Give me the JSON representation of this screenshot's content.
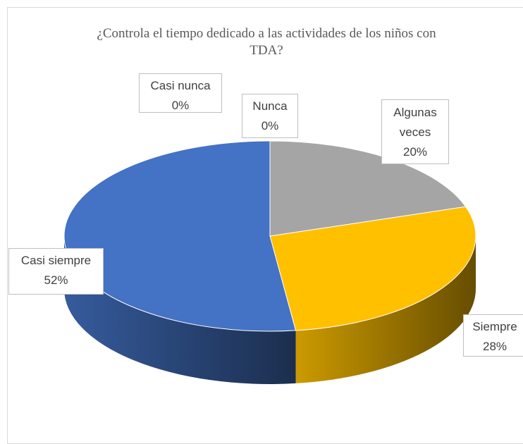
{
  "chart_data": {
    "type": "pie",
    "title": "¿Controla el tiempo dedicado a las actividades de los niños con TDA?",
    "categories": [
      "Nunca",
      "Algunas veces",
      "Siempre",
      "Casi siempre",
      "Casi nunca"
    ],
    "values": [
      0,
      20,
      28,
      52,
      0
    ],
    "value_labels": [
      "0%",
      "20%",
      "28%",
      "52%",
      "0%"
    ],
    "colors": [
      "#ed7d31",
      "#a5a5a5",
      "#ffc000",
      "#4472c4",
      "#5b9bd5"
    ]
  }
}
